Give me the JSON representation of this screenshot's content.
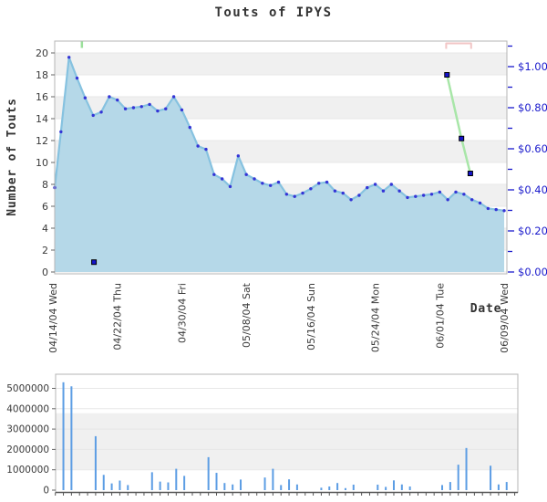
{
  "title": "Touts of IPYS",
  "colors": {
    "area_fill": "#b5d8e8",
    "area_line": "#86c2e0",
    "point": "#3434d6",
    "price_line": "#a8e6a8",
    "price_marker_fill": "#1515cc",
    "price_marker_stroke": "#000000",
    "bar": "#5c9de4",
    "right_axis": "#1a1acc",
    "axis_text": "#3a3a3a",
    "stripe": "#f0f0f0",
    "gridline": "#e7e7e7",
    "border": "#b5b5b5",
    "bottom_axis_line": "#555555",
    "tick_annotation": "#9be09b",
    "bracket_annotation": "#f2c6c6"
  },
  "chart_data": [
    {
      "type": "area",
      "title": "Touts of IPYS",
      "xlabel": "Date",
      "ylabel": "Number of Touts",
      "start_date": "04/14/04",
      "end_date": "06/09/04",
      "ylim": [
        0,
        21
      ],
      "y_ticks": [
        0,
        2,
        4,
        6,
        8,
        10,
        12,
        14,
        16,
        18,
        20
      ],
      "y2lim": [
        0,
        1.12
      ],
      "y2_ticks": {
        "labels": [
          "$0.00",
          "$0.20",
          "$0.40",
          "$0.60",
          "$0.80",
          "$1.00"
        ],
        "label_values": [
          0,
          0.2,
          0.4,
          0.6,
          0.8,
          1.0
        ],
        "minor_step": 0.1,
        "max": 1.1
      },
      "x_ticks": {
        "labels": [
          "04/14/04 Wed",
          "04/22/04 Thu",
          "04/30/04 Fri",
          "05/08/04 Sat",
          "05/16/04 Sun",
          "05/24/04 Mon",
          "06/01/04 Tue",
          "06/09/04 Wed"
        ],
        "day_indices": [
          0,
          8,
          16,
          24,
          32,
          40,
          48,
          56
        ]
      },
      "series": [
        {
          "name": "touts",
          "kind": "area-line-points",
          "axis": "left",
          "values": [
            7.7,
            12.8,
            19.6,
            17.7,
            15.9,
            14.3,
            14.6,
            16.0,
            15.7,
            14.9,
            15.0,
            15.1,
            15.3,
            14.7,
            14.9,
            16.0,
            14.8,
            13.2,
            11.5,
            11.2,
            8.9,
            8.5,
            7.8,
            10.6,
            8.9,
            8.5,
            8.1,
            7.9,
            8.2,
            7.1,
            6.9,
            7.2,
            7.6,
            8.1,
            8.2,
            7.4,
            7.2,
            6.6,
            7.0,
            7.7,
            8.0,
            7.4,
            8.0,
            7.4,
            6.8,
            6.9,
            7.0,
            7.1,
            7.3,
            6.6,
            7.3,
            7.1,
            6.6,
            6.3,
            5.8,
            5.7,
            5.6
          ]
        },
        {
          "name": "price",
          "kind": "line-squares",
          "axis": "right",
          "points": [
            {
              "day": 48.9,
              "price": 0.96
            },
            {
              "day": 50.7,
              "price": 0.65
            },
            {
              "day": 51.8,
              "price": 0.48
            }
          ]
        },
        {
          "name": "event-marker",
          "kind": "square",
          "axis": "left",
          "points": [
            {
              "day": 5.1,
              "value": 0.9
            }
          ]
        }
      ],
      "annotations": [
        {
          "type": "tick",
          "day": 3.6
        },
        {
          "type": "bracket",
          "day_from": 48.8,
          "day_to": 51.9
        }
      ]
    },
    {
      "type": "bar",
      "name": "volume",
      "ylim": [
        0,
        5700000
      ],
      "y_ticks": [
        0,
        1000000,
        2000000,
        3000000,
        4000000,
        5000000
      ],
      "bars": [
        {
          "date": "04/15/04",
          "day": 1,
          "value": 5300000
        },
        {
          "date": "04/16/04",
          "day": 2,
          "value": 5100000
        },
        {
          "date": "04/19/04",
          "day": 5,
          "value": 2650000
        },
        {
          "date": "04/20/04",
          "day": 6,
          "value": 750000
        },
        {
          "date": "04/21/04",
          "day": 7,
          "value": 330000
        },
        {
          "date": "04/22/04",
          "day": 8,
          "value": 470000
        },
        {
          "date": "04/23/04",
          "day": 9,
          "value": 250000
        },
        {
          "date": "04/26/04",
          "day": 12,
          "value": 880000
        },
        {
          "date": "04/27/04",
          "day": 13,
          "value": 420000
        },
        {
          "date": "04/28/04",
          "day": 14,
          "value": 380000
        },
        {
          "date": "04/29/04",
          "day": 15,
          "value": 1050000
        },
        {
          "date": "04/30/04",
          "day": 16,
          "value": 700000
        },
        {
          "date": "05/03/04",
          "day": 19,
          "value": 1620000
        },
        {
          "date": "05/04/04",
          "day": 20,
          "value": 850000
        },
        {
          "date": "05/05/04",
          "day": 21,
          "value": 350000
        },
        {
          "date": "05/06/04",
          "day": 22,
          "value": 280000
        },
        {
          "date": "05/07/04",
          "day": 23,
          "value": 520000
        },
        {
          "date": "05/10/04",
          "day": 26,
          "value": 620000
        },
        {
          "date": "05/11/04",
          "day": 27,
          "value": 1050000
        },
        {
          "date": "05/12/04",
          "day": 28,
          "value": 250000
        },
        {
          "date": "05/13/04",
          "day": 29,
          "value": 530000
        },
        {
          "date": "05/14/04",
          "day": 30,
          "value": 280000
        },
        {
          "date": "05/17/04",
          "day": 33,
          "value": 120000
        },
        {
          "date": "05/18/04",
          "day": 34,
          "value": 180000
        },
        {
          "date": "05/19/04",
          "day": 35,
          "value": 350000
        },
        {
          "date": "05/20/04",
          "day": 36,
          "value": 100000
        },
        {
          "date": "05/21/04",
          "day": 37,
          "value": 270000
        },
        {
          "date": "05/24/04",
          "day": 40,
          "value": 270000
        },
        {
          "date": "05/25/04",
          "day": 41,
          "value": 160000
        },
        {
          "date": "05/26/04",
          "day": 42,
          "value": 480000
        },
        {
          "date": "05/27/04",
          "day": 43,
          "value": 280000
        },
        {
          "date": "05/28/04",
          "day": 44,
          "value": 180000
        },
        {
          "date": "06/01/04",
          "day": 48,
          "value": 250000
        },
        {
          "date": "06/02/04",
          "day": 49,
          "value": 400000
        },
        {
          "date": "06/03/04",
          "day": 50,
          "value": 1250000
        },
        {
          "date": "06/04/04",
          "day": 51,
          "value": 2070000
        },
        {
          "date": "06/07/04",
          "day": 54,
          "value": 1200000
        },
        {
          "date": "06/08/04",
          "day": 55,
          "value": 280000
        },
        {
          "date": "06/09/04",
          "day": 56,
          "value": 400000
        }
      ]
    }
  ]
}
